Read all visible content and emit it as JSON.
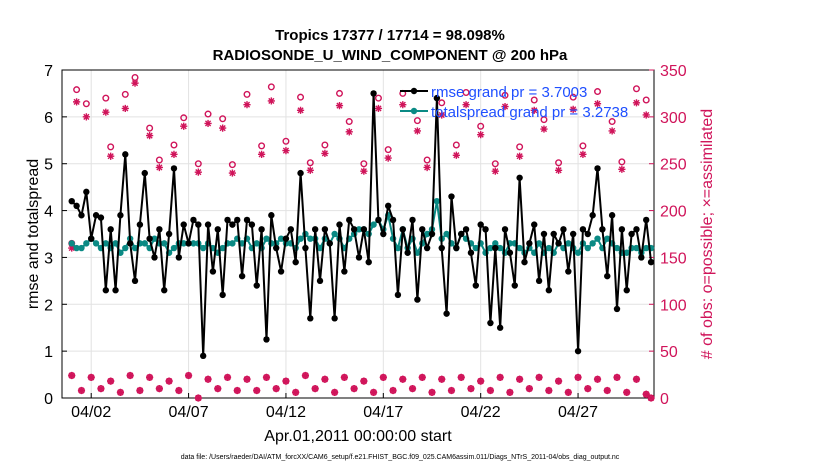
{
  "chart_data": {
    "type": "line",
    "title": "Tropics 17377 / 17714 = 98.098%",
    "subtitle": "RADIOSONDE_U_WIND_COMPONENT @ 200 hPa",
    "xlabel": "Apr.01,2011 00:00:00 start",
    "ylabel": "rmse and totalspread",
    "ylabel_right": "# of obs: o=possible; ×=assimilated",
    "footnote": "data file: /Users/raeder/DAI/ATM_forcXX/CAM6_setup/f.e21.FHIST_BGC.f09_025.CAM6assim.011/Diags_NTrS_2011-04/obs_diag_output.nc",
    "xlim": [
      0.5,
      30.9
    ],
    "ylim": [
      0,
      7
    ],
    "ylim_right": [
      0,
      350
    ],
    "x_ticks": [
      2,
      7,
      12,
      17,
      22,
      27
    ],
    "x_tick_labels": [
      "04/02",
      "04/07",
      "04/12",
      "04/17",
      "04/22",
      "04/27"
    ],
    "y_ticks": [
      0,
      1,
      2,
      3,
      4,
      5,
      6,
      7
    ],
    "y_ticks_right": [
      0,
      50,
      100,
      150,
      200,
      250,
      300,
      350
    ],
    "grid": true,
    "legend_position": "top-right",
    "series": [
      {
        "name": "rmse grand pr = 3.7003",
        "color": "#000000",
        "x": [
          1.0,
          1.25,
          1.5,
          1.75,
          2.0,
          2.25,
          2.5,
          2.75,
          3.0,
          3.25,
          3.5,
          3.75,
          4.0,
          4.25,
          4.5,
          4.75,
          5.0,
          5.25,
          5.5,
          5.75,
          6.0,
          6.25,
          6.5,
          6.75,
          7.0,
          7.25,
          7.5,
          7.75,
          8.0,
          8.25,
          8.5,
          8.75,
          9.0,
          9.25,
          9.5,
          9.75,
          10.0,
          10.25,
          10.5,
          10.75,
          11.0,
          11.25,
          11.5,
          11.75,
          12.0,
          12.25,
          12.5,
          12.75,
          13.0,
          13.25,
          13.5,
          13.75,
          14.0,
          14.25,
          14.5,
          14.75,
          15.0,
          15.25,
          15.5,
          15.75,
          16.0,
          16.25,
          16.5,
          16.75,
          17.0,
          17.25,
          17.5,
          17.75,
          18.0,
          18.25,
          18.5,
          18.75,
          19.0,
          19.25,
          19.5,
          19.75,
          20.0,
          20.25,
          20.5,
          20.75,
          21.0,
          21.25,
          21.5,
          21.75,
          22.0,
          22.25,
          22.5,
          22.75,
          23.0,
          23.25,
          23.5,
          23.75,
          24.0,
          24.25,
          24.5,
          24.75,
          25.0,
          25.25,
          25.5,
          25.75,
          26.0,
          26.25,
          26.5,
          26.75,
          27.0,
          27.25,
          27.5,
          27.75,
          28.0,
          28.25,
          28.5,
          28.75,
          29.0,
          29.25,
          29.5,
          29.75,
          30.0,
          30.25,
          30.5,
          30.75
        ],
        "values": [
          4.2,
          4.1,
          3.9,
          4.4,
          3.4,
          3.9,
          3.85,
          2.3,
          3.6,
          2.3,
          3.9,
          5.2,
          3.3,
          2.5,
          3.7,
          4.8,
          3.4,
          3.0,
          3.6,
          2.3,
          3.5,
          4.9,
          3.0,
          3.7,
          3.3,
          3.8,
          3.7,
          0.9,
          3.7,
          2.7,
          3.6,
          2.2,
          3.8,
          3.7,
          3.8,
          2.6,
          3.8,
          3.7,
          2.4,
          3.6,
          1.25,
          3.9,
          3.2,
          2.7,
          3.4,
          3.6,
          2.9,
          4.8,
          3.2,
          1.7,
          3.6,
          2.5,
          3.6,
          3.3,
          1.7,
          3.7,
          2.7,
          3.8,
          3.6,
          3.0,
          3.6,
          2.9,
          6.5,
          3.8,
          3.5,
          4.1,
          3.8,
          2.2,
          3.6,
          3.1,
          3.8,
          2.1,
          3.6,
          3.2,
          3.5,
          6.4,
          3.2,
          1.8,
          4.3,
          3.2,
          3.5,
          3.6,
          3.1,
          2.4,
          3.7,
          3.6,
          1.6,
          3.2,
          1.5,
          3.6,
          3.1,
          2.4,
          4.7,
          2.9,
          3.3,
          3.7,
          2.5,
          3.5,
          2.3,
          3.5,
          3.3,
          3.6,
          2.7,
          3.5,
          1.0,
          3.6,
          3.5,
          3.9,
          4.9,
          3.6,
          2.6,
          3.9,
          1.9,
          3.6,
          2.3,
          3.5,
          3.6,
          3.0,
          3.8,
          2.9
        ]
      },
      {
        "name": "totalspread grand pr = 3.2738",
        "color": "#0a8a84",
        "x": [
          1.0,
          1.25,
          1.5,
          1.75,
          2.0,
          2.25,
          2.5,
          2.75,
          3.0,
          3.25,
          3.5,
          3.75,
          4.0,
          4.25,
          4.5,
          4.75,
          5.0,
          5.25,
          5.5,
          5.75,
          6.0,
          6.25,
          6.5,
          6.75,
          7.0,
          7.25,
          7.5,
          7.75,
          8.0,
          8.25,
          8.5,
          8.75,
          9.0,
          9.25,
          9.5,
          9.75,
          10.0,
          10.25,
          10.5,
          10.75,
          11.0,
          11.25,
          11.5,
          11.75,
          12.0,
          12.25,
          12.5,
          12.75,
          13.0,
          13.25,
          13.5,
          13.75,
          14.0,
          14.25,
          14.5,
          14.75,
          15.0,
          15.25,
          15.5,
          15.75,
          16.0,
          16.25,
          16.5,
          16.75,
          17.0,
          17.25,
          17.5,
          17.75,
          18.0,
          18.25,
          18.5,
          18.75,
          19.0,
          19.25,
          19.5,
          19.75,
          20.0,
          20.25,
          20.5,
          20.75,
          21.0,
          21.25,
          21.5,
          21.75,
          22.0,
          22.25,
          22.5,
          22.75,
          23.0,
          23.25,
          23.5,
          23.75,
          24.0,
          24.25,
          24.5,
          24.75,
          25.0,
          25.25,
          25.5,
          25.75,
          26.0,
          26.25,
          26.5,
          26.75,
          27.0,
          27.25,
          27.5,
          27.75,
          28.0,
          28.25,
          28.5,
          28.75,
          29.0,
          29.25,
          29.5,
          29.75,
          30.0,
          30.25,
          30.5,
          30.75
        ],
        "values": [
          3.3,
          3.2,
          3.2,
          3.3,
          3.4,
          3.3,
          3.2,
          3.3,
          3.2,
          3.3,
          3.1,
          3.2,
          3.4,
          3.2,
          3.3,
          3.3,
          3.2,
          3.4,
          3.3,
          3.3,
          3.1,
          3.2,
          3.3,
          3.3,
          3.3,
          3.3,
          3.3,
          3.2,
          3.3,
          3.2,
          3.1,
          3.2,
          3.3,
          3.3,
          3.4,
          3.3,
          3.4,
          3.2,
          3.3,
          3.2,
          3.4,
          3.3,
          3.3,
          3.4,
          3.3,
          3.3,
          3.2,
          3.4,
          3.5,
          3.4,
          3.4,
          3.2,
          3.4,
          3.3,
          3.5,
          3.4,
          3.2,
          3.4,
          3.5,
          3.6,
          3.6,
          3.5,
          3.7,
          3.8,
          3.6,
          3.9,
          3.4,
          3.2,
          3.6,
          3.2,
          3.4,
          3.1,
          3.3,
          3.5,
          3.6,
          4.2,
          3.4,
          3.5,
          3.3,
          3.2,
          3.5,
          3.4,
          3.3,
          3.2,
          3.3,
          3.1,
          3.2,
          3.3,
          3.2,
          3.1,
          3.3,
          3.3,
          3.2,
          3.1,
          3.2,
          3.1,
          3.3,
          3.1,
          3.2,
          3.1,
          3.3,
          3.2,
          3.3,
          3.2,
          3.1,
          3.3,
          3.2,
          3.3,
          3.4,
          3.2,
          3.4,
          3.3,
          3.2,
          3.1,
          3.1,
          3.2,
          3.2,
          3.1,
          3.2,
          3.2
        ]
      },
      {
        "name": "obs possible (upper, o)",
        "axis": "right",
        "x": [
          1.0,
          1.25,
          1.75,
          2.75,
          3.0,
          3.75,
          4.25,
          5.0,
          5.5,
          6.25,
          6.75,
          7.5,
          8.0,
          8.75,
          9.25,
          10.0,
          10.75,
          11.25,
          12.0,
          12.75,
          13.25,
          14.0,
          14.75,
          15.25,
          16.0,
          16.75,
          17.25,
          18.0,
          18.75,
          19.25,
          20.0,
          20.75,
          21.25,
          22.0,
          22.75,
          23.25,
          24.0,
          24.75,
          25.25,
          26.0,
          26.75,
          27.25,
          28.0,
          28.75,
          29.25,
          30.0,
          30.5
        ],
        "values": [
          165,
          329,
          314,
          320,
          268,
          324,
          342,
          288,
          254,
          270,
          299,
          250,
          303,
          298,
          249,
          324,
          269,
          332,
          274,
          321,
          251,
          270,
          325,
          295,
          250,
          320,
          265,
          325,
          296,
          254,
          315,
          270,
          326,
          290,
          250,
          323,
          268,
          318,
          297,
          251,
          321,
          269,
          327,
          295,
          252,
          330,
          318
        ]
      },
      {
        "name": "obs assimilated (upper, ×)",
        "axis": "right",
        "x": [
          1.0,
          1.25,
          1.75,
          2.75,
          3.0,
          3.75,
          4.25,
          5.0,
          5.5,
          6.25,
          6.75,
          7.5,
          8.0,
          8.75,
          9.25,
          10.0,
          10.75,
          11.25,
          12.0,
          12.75,
          13.25,
          14.0,
          14.75,
          15.25,
          16.0,
          16.75,
          17.25,
          18.0,
          18.75,
          19.25,
          20.0,
          20.75,
          21.25,
          22.0,
          22.75,
          23.25,
          24.0,
          24.75,
          25.25,
          26.0,
          26.75,
          27.25,
          28.0,
          28.75,
          29.25,
          30.0,
          30.5
        ],
        "values": [
          160,
          316,
          300,
          305,
          258,
          309,
          336,
          280,
          246,
          260,
          290,
          241,
          293,
          288,
          240,
          313,
          260,
          317,
          264,
          307,
          243,
          261,
          312,
          284,
          242,
          309,
          256,
          313,
          285,
          246,
          302,
          259,
          313,
          281,
          242,
          311,
          258,
          307,
          287,
          243,
          308,
          260,
          314,
          285,
          244,
          315,
          302
        ]
      },
      {
        "name": "obs possible (lower, o)",
        "axis": "right",
        "x": [
          1.0,
          1.5,
          2.0,
          2.5,
          3.0,
          3.5,
          4.0,
          4.5,
          5.0,
          5.5,
          6.0,
          6.5,
          7.0,
          7.5,
          8.0,
          8.5,
          9.0,
          9.5,
          10.0,
          10.5,
          11.0,
          11.5,
          12.0,
          12.5,
          13.0,
          13.5,
          14.0,
          14.5,
          15.0,
          15.5,
          16.0,
          16.5,
          17.0,
          17.5,
          18.0,
          18.5,
          19.0,
          19.5,
          20.0,
          20.5,
          21.0,
          21.5,
          22.0,
          22.5,
          23.0,
          23.5,
          24.0,
          24.5,
          25.0,
          25.5,
          26.0,
          26.5,
          27.0,
          27.5,
          28.0,
          28.5,
          29.0,
          29.5,
          30.0,
          30.5,
          30.75
        ],
        "values": [
          24,
          8,
          22,
          10,
          18,
          6,
          24,
          8,
          22,
          10,
          18,
          8,
          24,
          0,
          20,
          10,
          22,
          8,
          20,
          8,
          22,
          10,
          18,
          6,
          24,
          10,
          20,
          6,
          22,
          10,
          18,
          6,
          22,
          8,
          20,
          10,
          22,
          6,
          20,
          8,
          22,
          10,
          18,
          8,
          22,
          6,
          20,
          10,
          22,
          8,
          18,
          6,
          22,
          10,
          20,
          8,
          22,
          6,
          20,
          4,
          0
        ]
      },
      {
        "name": "obs assimilated (lower, ×)",
        "axis": "right",
        "x": [
          1.0,
          1.5,
          2.0,
          2.5,
          3.0,
          3.5,
          4.0,
          4.5,
          5.0,
          5.5,
          6.0,
          6.5,
          7.0,
          7.5,
          8.0,
          8.5,
          9.0,
          9.5,
          10.0,
          10.5,
          11.0,
          11.5,
          12.0,
          12.5,
          13.0,
          13.5,
          14.0,
          14.5,
          15.0,
          15.5,
          16.0,
          16.5,
          17.0,
          17.5,
          18.0,
          18.5,
          19.0,
          19.5,
          20.0,
          20.5,
          21.0,
          21.5,
          22.0,
          22.5,
          23.0,
          23.5,
          24.0,
          24.5,
          25.0,
          25.5,
          26.0,
          26.5,
          27.0,
          27.5,
          28.0,
          28.5,
          29.0,
          29.5,
          30.0,
          30.5,
          30.75
        ],
        "values": [
          24,
          8,
          22,
          10,
          18,
          6,
          24,
          8,
          22,
          10,
          18,
          8,
          24,
          0,
          20,
          10,
          22,
          8,
          20,
          8,
          22,
          10,
          18,
          6,
          24,
          10,
          20,
          6,
          22,
          10,
          18,
          6,
          22,
          8,
          20,
          10,
          22,
          6,
          20,
          8,
          22,
          10,
          18,
          8,
          22,
          6,
          20,
          10,
          22,
          8,
          18,
          6,
          22,
          10,
          20,
          8,
          22,
          6,
          20,
          4,
          0
        ]
      }
    ]
  },
  "colors": {
    "rmse": "#000000",
    "spread": "#0a8a84",
    "obs": "#d0145a",
    "legend_text": "#1f4fff",
    "grid": "#e2e2e2"
  }
}
